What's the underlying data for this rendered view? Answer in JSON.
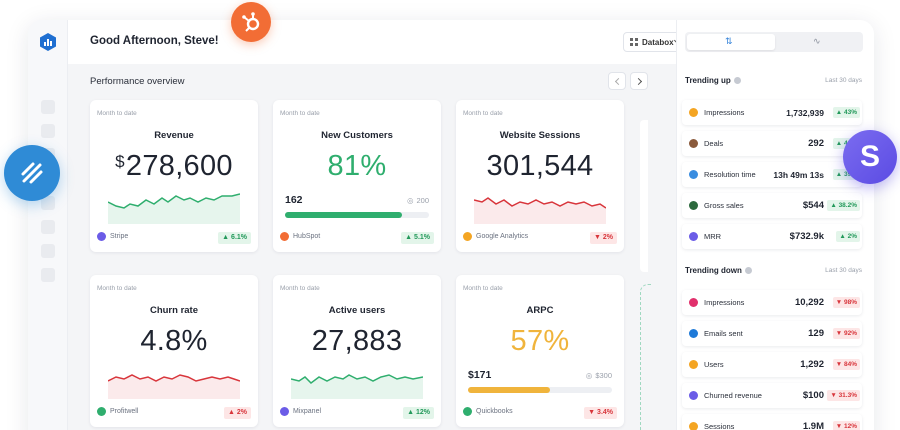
{
  "header": {
    "greeting": "Good Afternoon, Steve!",
    "databox_select": "Databox"
  },
  "main": {
    "section_title": "Performance overview",
    "cards": [
      {
        "subtitle": "Month to date",
        "title": "Revenue",
        "currency": "$",
        "value": "278,600",
        "source": "Stripe",
        "badge": "▲ 6.1%",
        "trend": "up"
      },
      {
        "subtitle": "Month to date",
        "title": "New Customers",
        "value": "81%",
        "progress_current": "162",
        "progress_target": "200",
        "progress_fraction": 0.81,
        "source": "HubSpot",
        "badge": "▲ 5.1%",
        "trend": "up"
      },
      {
        "subtitle": "Month to date",
        "title": "Website Sessions",
        "value": "301,544",
        "source": "Google Analytics",
        "badge": "▼ 2%",
        "trend": "down"
      },
      {
        "subtitle": "Month to date",
        "title": "Churn rate",
        "value": "4.8%",
        "source": "Profitwell",
        "badge": "▲ 2%",
        "trend": "down"
      },
      {
        "subtitle": "Month to date",
        "title": "Active users",
        "value": "27,883",
        "source": "Mixpanel",
        "badge": "▲ 12%",
        "trend": "up"
      },
      {
        "subtitle": "Month to date",
        "title": "ARPC",
        "value": "57%",
        "progress_current": "$171",
        "progress_target": "$300",
        "progress_fraction": 0.57,
        "source": "Quickbooks",
        "badge": "▼ 3.4%",
        "trend": "down"
      }
    ]
  },
  "trending_up": {
    "title": "Trending up",
    "period": "Last 30 days",
    "items": [
      {
        "name": "Impressions",
        "value": "1,732,939",
        "badge": "▲ 43%",
        "color": "#f4a523"
      },
      {
        "name": "Deals",
        "value": "292",
        "badge": "▲ 41%",
        "color": "#8a5a3c"
      },
      {
        "name": "Resolution time",
        "value": "13h 49m 13s",
        "badge": "▲ 39%",
        "color": "#3a8de0"
      },
      {
        "name": "Gross sales",
        "value": "$544",
        "badge": "▲ 38.2%",
        "color": "#2d6a3e"
      },
      {
        "name": "MRR",
        "value": "$732.9k",
        "badge": "▲ 2%",
        "color": "#6b5ce7"
      }
    ]
  },
  "trending_down": {
    "title": "Trending down",
    "period": "Last 30 days",
    "items": [
      {
        "name": "Impressions",
        "value": "10,292",
        "badge": "▼ 98%",
        "color": "#e1306c"
      },
      {
        "name": "Emails sent",
        "value": "129",
        "badge": "▼ 92%",
        "color": "#1f7ad8"
      },
      {
        "name": "Users",
        "value": "1,292",
        "badge": "▼ 84%",
        "color": "#f4a523"
      },
      {
        "name": "Churned revenue",
        "value": "$100",
        "badge": "▼ 31.3%",
        "color": "#6b5ce7"
      },
      {
        "name": "Sessions",
        "value": "1.9M",
        "badge": "▼ 12%",
        "color": "#f4a523"
      }
    ]
  },
  "floating": {
    "stripe_letter": "S"
  },
  "colors": {
    "green": "#2fae6e",
    "red": "#d8353b",
    "yellow": "#f0b43c",
    "accent": "#2f7fd8"
  }
}
